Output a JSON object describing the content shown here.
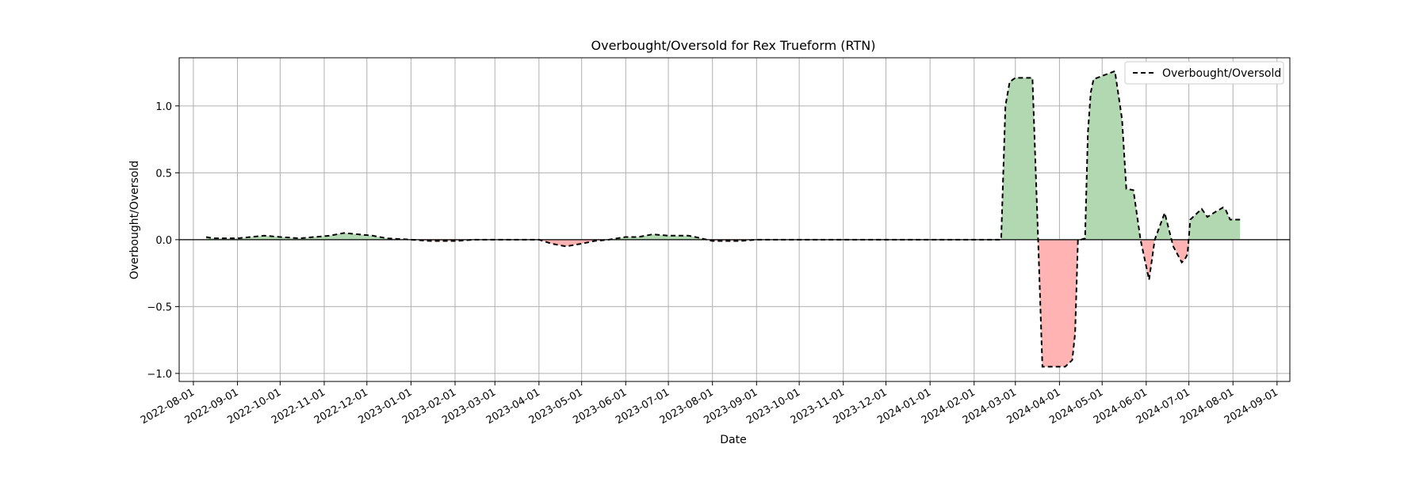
{
  "chart_data": {
    "type": "area",
    "title": "Overbought/Oversold for Rex Trueform (RTN)",
    "xlabel": "Date",
    "ylabel": "Overbought/Oversold",
    "xlim": [
      "2022-07-22",
      "2024-09-10"
    ],
    "ylim": [
      -1.06,
      1.36
    ],
    "x_ticks": [
      "2022-08-01",
      "2022-09-01",
      "2022-10-01",
      "2022-11-01",
      "2022-12-01",
      "2023-01-01",
      "2023-02-01",
      "2023-03-01",
      "2023-04-01",
      "2023-05-01",
      "2023-06-01",
      "2023-07-01",
      "2023-08-01",
      "2023-09-01",
      "2023-10-01",
      "2023-11-01",
      "2023-12-01",
      "2024-01-01",
      "2024-02-01",
      "2024-03-01",
      "2024-04-01",
      "2024-05-01",
      "2024-06-01",
      "2024-07-01",
      "2024-08-01",
      "2024-09-01"
    ],
    "y_ticks": [
      -1.0,
      -0.5,
      0.0,
      0.5,
      1.0
    ],
    "y_tick_labels": [
      "−1.0",
      "−0.5",
      "0.0",
      "0.5",
      "1.0"
    ],
    "grid": true,
    "legend": {
      "position": "upper right",
      "entries": [
        "Overbought/Oversold"
      ]
    },
    "fill_colors": {
      "positive": "#b2d8b2",
      "negative": "#ffb3b3"
    },
    "line_color": "#000000",
    "zero_line": true,
    "series": [
      {
        "name": "Overbought/Oversold",
        "style": "dashed",
        "x": [
          "2022-08-10",
          "2022-08-15",
          "2022-08-20",
          "2022-09-01",
          "2022-09-10",
          "2022-09-20",
          "2022-10-01",
          "2022-10-15",
          "2022-10-25",
          "2022-11-05",
          "2022-11-15",
          "2022-11-25",
          "2022-12-05",
          "2022-12-15",
          "2023-01-01",
          "2023-01-15",
          "2023-02-01",
          "2023-02-15",
          "2023-03-01",
          "2023-03-15",
          "2023-03-25",
          "2023-04-01",
          "2023-04-10",
          "2023-04-20",
          "2023-05-01",
          "2023-05-10",
          "2023-05-20",
          "2023-06-01",
          "2023-06-10",
          "2023-06-15",
          "2023-06-20",
          "2023-07-01",
          "2023-07-10",
          "2023-07-15",
          "2023-07-20",
          "2023-08-01",
          "2023-08-10",
          "2023-08-20",
          "2023-09-01",
          "2023-10-01",
          "2023-11-01",
          "2023-12-01",
          "2024-01-01",
          "2024-02-01",
          "2024-02-20",
          "2024-02-23",
          "2024-02-26",
          "2024-03-01",
          "2024-03-05",
          "2024-03-10",
          "2024-03-13",
          "2024-03-17",
          "2024-03-20",
          "2024-03-28",
          "2024-04-05",
          "2024-04-10",
          "2024-04-12",
          "2024-04-14",
          "2024-04-16",
          "2024-04-19",
          "2024-04-21",
          "2024-04-23",
          "2024-04-25",
          "2024-04-30",
          "2024-05-05",
          "2024-05-10",
          "2024-05-15",
          "2024-05-18",
          "2024-05-23",
          "2024-05-28",
          "2024-06-03",
          "2024-06-07",
          "2024-06-14",
          "2024-06-20",
          "2024-06-26",
          "2024-06-28",
          "2024-06-30",
          "2024-07-02",
          "2024-07-10",
          "2024-07-14",
          "2024-07-20",
          "2024-07-25",
          "2024-07-27",
          "2024-07-30",
          "2024-08-04",
          "2024-08-06"
        ],
        "values": [
          0.02,
          0.01,
          0.01,
          0.01,
          0.02,
          0.03,
          0.02,
          0.01,
          0.02,
          0.03,
          0.05,
          0.04,
          0.03,
          0.01,
          0.0,
          -0.01,
          -0.01,
          0.0,
          0.0,
          0.0,
          0.0,
          0.0,
          -0.03,
          -0.05,
          -0.03,
          -0.01,
          0.0,
          0.02,
          0.02,
          0.03,
          0.04,
          0.03,
          0.03,
          0.03,
          0.02,
          -0.01,
          -0.01,
          -0.01,
          0.0,
          0.0,
          0.0,
          0.0,
          0.0,
          0.0,
          0.0,
          1.0,
          1.18,
          1.21,
          1.21,
          1.21,
          1.21,
          0.0,
          -0.95,
          -0.95,
          -0.95,
          -0.9,
          -0.7,
          0.0,
          0.0,
          0.01,
          0.8,
          1.1,
          1.2,
          1.22,
          1.24,
          1.26,
          0.9,
          0.38,
          0.37,
          0.0,
          -0.3,
          0.0,
          0.2,
          -0.05,
          -0.17,
          -0.15,
          -0.11,
          0.15,
          0.23,
          0.17,
          0.21,
          0.24,
          0.22,
          0.15,
          0.15,
          0.15
        ]
      }
    ]
  }
}
